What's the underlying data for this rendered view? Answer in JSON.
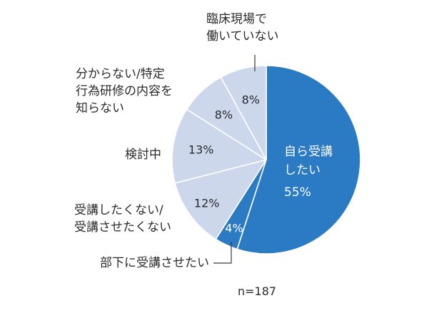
{
  "chart_data": {
    "type": "pie",
    "start": "12 o'clock",
    "direction": "clockwise",
    "slices": [
      {
        "label": [
          "自ら受講",
          "したい"
        ],
        "value": 55,
        "value_label": "55%"
      },
      {
        "label": [
          "部下に受講させたい"
        ],
        "value": 4,
        "value_label": "4%"
      },
      {
        "label": [
          "受講したくない/",
          "受講させたくない"
        ],
        "value": 12,
        "value_label": "12%"
      },
      {
        "label": [
          "検討中"
        ],
        "value": 13,
        "value_label": "13%"
      },
      {
        "label": [
          "分からない/特定",
          "行為研修の内容を",
          "知らない"
        ],
        "value": 8,
        "value_label": "8%"
      },
      {
        "label": [
          "臨床現場で",
          "働いていない"
        ],
        "value": 8,
        "value_label": "8%"
      }
    ],
    "colors": {
      "primary": "#2a7bc4",
      "secondary": "#ccd7ec",
      "edge": "#ffffff",
      "leader": "#3a3a3a"
    },
    "note": "n=187"
  }
}
